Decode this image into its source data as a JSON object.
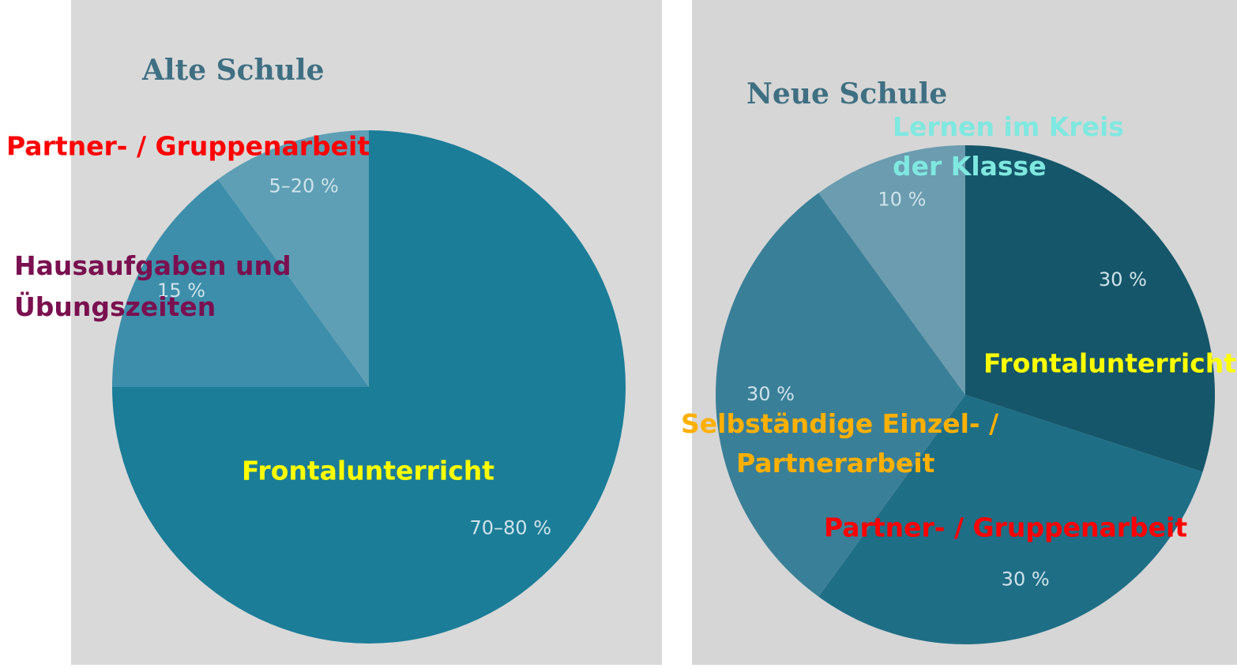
{
  "chart_data": [
    {
      "type": "pie",
      "title": "Alte Schule",
      "categories": [
        "Frontalunterricht",
        "Hausaufgaben und Übungszeiten",
        "Partner- / Gruppenarbeit"
      ],
      "values": [
        75,
        15,
        10
      ],
      "value_labels": [
        "70–80 %",
        "15 %",
        "5–20 %"
      ],
      "colors": [
        "#1b7d98",
        "#3d8eaa",
        "#5e9fb5"
      ],
      "label_colors": [
        "#ffff00",
        "#7a1050",
        "#ff0000"
      ]
    },
    {
      "type": "pie",
      "title": "Neue Schule",
      "categories": [
        "Frontalunterricht",
        "Partner- / Gruppenarbeit",
        "Selbständige Einzel- / Partnerarbeit",
        "Lernen im Kreis der Klasse"
      ],
      "values": [
        30,
        30,
        30,
        10
      ],
      "value_labels": [
        "30 %",
        "30 %",
        "30 %",
        "10 %"
      ],
      "colors": [
        "#15566a",
        "#1e6e86",
        "#3a7f98",
        "#6b9cb0"
      ],
      "label_colors": [
        "#ffff00",
        "#ff0000",
        "#ffb000",
        "#7fe8e0"
      ]
    }
  ]
}
